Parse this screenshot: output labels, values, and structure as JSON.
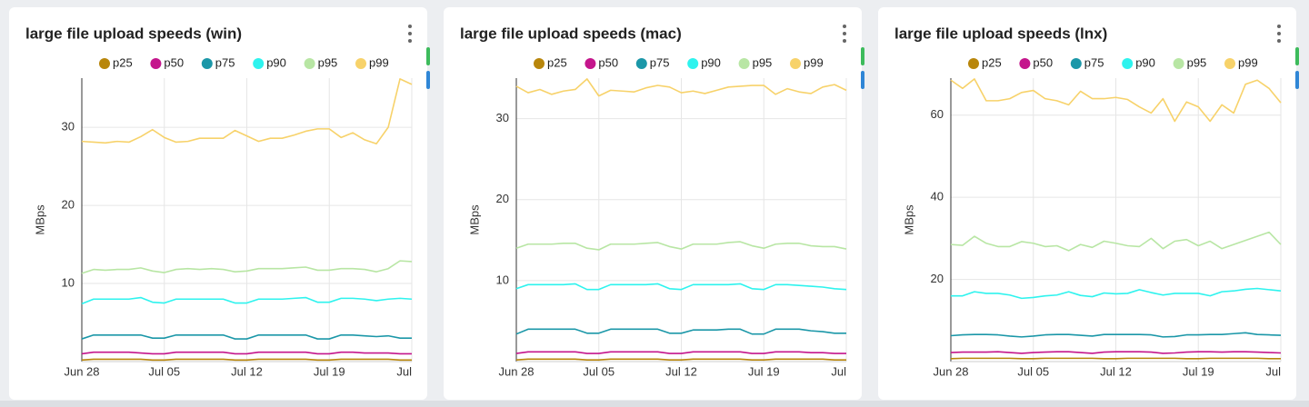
{
  "chart_data": [
    {
      "type": "line",
      "title": "large file upload speeds (win)",
      "y_label": "MBps",
      "legend": "top",
      "grid": true,
      "x": [
        "Jun 28",
        null,
        null,
        null,
        null,
        null,
        null,
        "Jul 05",
        null,
        null,
        null,
        null,
        null,
        null,
        "Jul 12",
        null,
        null,
        null,
        null,
        null,
        null,
        "Jul 19",
        null,
        null,
        null,
        null,
        null,
        null,
        "Jul"
      ],
      "ylim": [
        0,
        36.3
      ],
      "yticks": [
        10,
        20,
        30
      ],
      "series": [
        {
          "name": "p25",
          "color": "#b8860b",
          "values": [
            0.2,
            0.3,
            0.3,
            0.3,
            0.3,
            0.3,
            0.2,
            0.2,
            0.3,
            0.3,
            0.3,
            0.3,
            0.3,
            0.2,
            0.2,
            0.3,
            0.3,
            0.3,
            0.3,
            0.3,
            0.2,
            0.2,
            0.3,
            0.3,
            0.3,
            0.3,
            0.3,
            0.2,
            0.2
          ]
        },
        {
          "name": "p50",
          "color": "#c4168c",
          "values": [
            1.0,
            1.2,
            1.2,
            1.2,
            1.2,
            1.1,
            1.0,
            1.0,
            1.2,
            1.2,
            1.2,
            1.2,
            1.2,
            1.0,
            1.0,
            1.2,
            1.2,
            1.2,
            1.2,
            1.2,
            1.0,
            1.0,
            1.2,
            1.2,
            1.1,
            1.1,
            1.1,
            1.0,
            1.0
          ]
        },
        {
          "name": "p75",
          "color": "#1b97a8",
          "values": [
            2.9,
            3.4,
            3.4,
            3.4,
            3.4,
            3.4,
            3.0,
            3.0,
            3.4,
            3.4,
            3.4,
            3.4,
            3.4,
            2.9,
            2.9,
            3.4,
            3.4,
            3.4,
            3.4,
            3.4,
            2.9,
            2.9,
            3.4,
            3.4,
            3.3,
            3.2,
            3.3,
            3.0,
            3.0
          ]
        },
        {
          "name": "p90",
          "color": "#2ef3ee",
          "values": [
            7.4,
            8.0,
            8.0,
            8.0,
            8.0,
            8.2,
            7.6,
            7.5,
            8.0,
            8.0,
            8.0,
            8.0,
            8.0,
            7.5,
            7.5,
            8.0,
            8.0,
            8.0,
            8.1,
            8.2,
            7.6,
            7.6,
            8.1,
            8.1,
            8.0,
            7.8,
            8.0,
            8.1,
            8.0
          ]
        },
        {
          "name": "p95",
          "color": "#b8e6a4",
          "values": [
            11.3,
            11.8,
            11.7,
            11.8,
            11.8,
            12.0,
            11.6,
            11.4,
            11.8,
            11.9,
            11.8,
            11.9,
            11.8,
            11.5,
            11.6,
            11.9,
            11.9,
            11.9,
            12.0,
            12.1,
            11.7,
            11.7,
            11.9,
            11.9,
            11.8,
            11.5,
            11.9,
            12.9,
            12.8
          ]
        },
        {
          "name": "p99",
          "color": "#f7d26a",
          "values": [
            28.2,
            28.1,
            28.0,
            28.2,
            28.1,
            28.8,
            29.7,
            28.7,
            28.1,
            28.2,
            28.6,
            28.6,
            28.6,
            29.6,
            28.9,
            28.2,
            28.6,
            28.6,
            29.0,
            29.5,
            29.8,
            29.8,
            28.7,
            29.3,
            28.4,
            27.9,
            30.0,
            36.2,
            35.5
          ]
        }
      ]
    },
    {
      "type": "line",
      "title": "large file upload speeds (mac)",
      "y_label": "MBps",
      "legend": "top",
      "grid": true,
      "x": [
        "Jun 28",
        null,
        null,
        null,
        null,
        null,
        null,
        "Jul 05",
        null,
        null,
        null,
        null,
        null,
        null,
        "Jul 12",
        null,
        null,
        null,
        null,
        null,
        null,
        "Jul 19",
        null,
        null,
        null,
        null,
        null,
        null,
        "Jul"
      ],
      "ylim": [
        0,
        35
      ],
      "yticks": [
        10,
        20,
        30
      ],
      "series": [
        {
          "name": "p25",
          "color": "#b8860b",
          "values": [
            0.2,
            0.3,
            0.3,
            0.3,
            0.3,
            0.3,
            0.2,
            0.2,
            0.3,
            0.3,
            0.3,
            0.3,
            0.3,
            0.2,
            0.2,
            0.3,
            0.3,
            0.3,
            0.3,
            0.3,
            0.2,
            0.2,
            0.3,
            0.3,
            0.3,
            0.3,
            0.3,
            0.2,
            0.2
          ]
        },
        {
          "name": "p50",
          "color": "#c4168c",
          "values": [
            1.0,
            1.2,
            1.2,
            1.2,
            1.2,
            1.2,
            1.0,
            1.0,
            1.2,
            1.2,
            1.2,
            1.2,
            1.2,
            1.0,
            1.0,
            1.2,
            1.2,
            1.2,
            1.2,
            1.2,
            1.0,
            1.0,
            1.2,
            1.2,
            1.2,
            1.1,
            1.1,
            1.0,
            1.0
          ]
        },
        {
          "name": "p75",
          "color": "#1b97a8",
          "values": [
            3.4,
            4.0,
            4.0,
            4.0,
            4.0,
            4.0,
            3.5,
            3.5,
            4.0,
            4.0,
            4.0,
            4.0,
            4.0,
            3.5,
            3.5,
            3.9,
            3.9,
            3.9,
            4.0,
            4.0,
            3.4,
            3.4,
            4.0,
            4.0,
            4.0,
            3.8,
            3.7,
            3.5,
            3.5
          ]
        },
        {
          "name": "p90",
          "color": "#2ef3ee",
          "values": [
            9.0,
            9.5,
            9.5,
            9.5,
            9.5,
            9.6,
            8.9,
            8.9,
            9.5,
            9.5,
            9.5,
            9.5,
            9.6,
            9.0,
            8.9,
            9.5,
            9.5,
            9.5,
            9.5,
            9.6,
            9.0,
            8.9,
            9.5,
            9.5,
            9.4,
            9.3,
            9.2,
            9.0,
            8.9
          ]
        },
        {
          "name": "p95",
          "color": "#b8e6a4",
          "values": [
            14.0,
            14.5,
            14.5,
            14.5,
            14.6,
            14.6,
            14.0,
            13.8,
            14.5,
            14.5,
            14.5,
            14.6,
            14.7,
            14.2,
            13.9,
            14.5,
            14.5,
            14.5,
            14.7,
            14.8,
            14.3,
            14.0,
            14.5,
            14.6,
            14.6,
            14.3,
            14.2,
            14.2,
            13.9
          ]
        },
        {
          "name": "p99",
          "color": "#f7d26a",
          "values": [
            34.0,
            33.2,
            33.6,
            33.0,
            33.4,
            33.6,
            34.9,
            32.8,
            33.5,
            33.4,
            33.3,
            33.8,
            34.1,
            33.9,
            33.2,
            33.4,
            33.1,
            33.5,
            33.9,
            34.0,
            34.1,
            34.1,
            33.0,
            33.7,
            33.3,
            33.1,
            33.9,
            34.2,
            33.5
          ]
        }
      ]
    },
    {
      "type": "line",
      "title": "large file upload speeds (lnx)",
      "y_label": "MBps",
      "legend": "top",
      "grid": true,
      "x": [
        "Jun 28",
        null,
        null,
        null,
        null,
        null,
        null,
        "Jul 05",
        null,
        null,
        null,
        null,
        null,
        null,
        "Jul 12",
        null,
        null,
        null,
        null,
        null,
        null,
        "Jul 19",
        null,
        null,
        null,
        null,
        null,
        null,
        "Jul"
      ],
      "ylim": [
        0,
        69
      ],
      "yticks": [
        20,
        40,
        60
      ],
      "series": [
        {
          "name": "p25",
          "color": "#b8860b",
          "values": [
            0.7,
            0.8,
            0.8,
            0.8,
            0.8,
            0.8,
            0.7,
            0.7,
            0.8,
            0.8,
            0.8,
            0.8,
            0.8,
            0.7,
            0.7,
            0.8,
            0.8,
            0.8,
            0.8,
            0.8,
            0.7,
            0.7,
            0.8,
            0.8,
            0.8,
            0.8,
            0.8,
            0.7,
            0.7
          ]
        },
        {
          "name": "p50",
          "color": "#c4168c",
          "values": [
            2.2,
            2.3,
            2.3,
            2.3,
            2.4,
            2.2,
            2.0,
            2.2,
            2.3,
            2.4,
            2.4,
            2.2,
            2.0,
            2.3,
            2.4,
            2.4,
            2.4,
            2.3,
            2.0,
            2.1,
            2.3,
            2.4,
            2.4,
            2.3,
            2.4,
            2.4,
            2.3,
            2.2,
            2.1
          ]
        },
        {
          "name": "p75",
          "color": "#1b97a8",
          "values": [
            6.3,
            6.5,
            6.6,
            6.6,
            6.5,
            6.2,
            6.0,
            6.2,
            6.5,
            6.6,
            6.6,
            6.4,
            6.2,
            6.6,
            6.6,
            6.6,
            6.6,
            6.5,
            6.0,
            6.1,
            6.5,
            6.5,
            6.6,
            6.6,
            6.8,
            7.0,
            6.6,
            6.5,
            6.4
          ]
        },
        {
          "name": "p90",
          "color": "#2ef3ee",
          "values": [
            16.0,
            16.0,
            17.0,
            16.6,
            16.6,
            16.2,
            15.4,
            15.6,
            16.0,
            16.2,
            17.0,
            16.1,
            15.8,
            16.7,
            16.5,
            16.6,
            17.5,
            16.8,
            16.2,
            16.6,
            16.6,
            16.6,
            16.0,
            17.0,
            17.2,
            17.6,
            17.8,
            17.5,
            17.2
          ]
        },
        {
          "name": "p95",
          "color": "#b8e6a4",
          "values": [
            28.5,
            28.3,
            30.5,
            28.8,
            28.0,
            28.0,
            29.2,
            28.8,
            28.0,
            28.2,
            27.0,
            28.5,
            27.8,
            29.3,
            28.8,
            28.2,
            28.0,
            30.0,
            27.5,
            29.3,
            29.7,
            28.2,
            29.3,
            27.5,
            28.5,
            29.5,
            30.5,
            31.5,
            28.5
          ]
        },
        {
          "name": "p99",
          "color": "#f7d26a",
          "values": [
            68.5,
            66.5,
            68.8,
            63.5,
            63.5,
            64.0,
            65.5,
            66.0,
            64.0,
            63.5,
            62.5,
            65.8,
            64.0,
            64.0,
            64.3,
            63.8,
            62.0,
            60.5,
            64.0,
            58.5,
            63.2,
            62.0,
            58.5,
            62.5,
            60.5,
            67.5,
            68.5,
            66.5,
            63.0
          ]
        }
      ]
    }
  ]
}
